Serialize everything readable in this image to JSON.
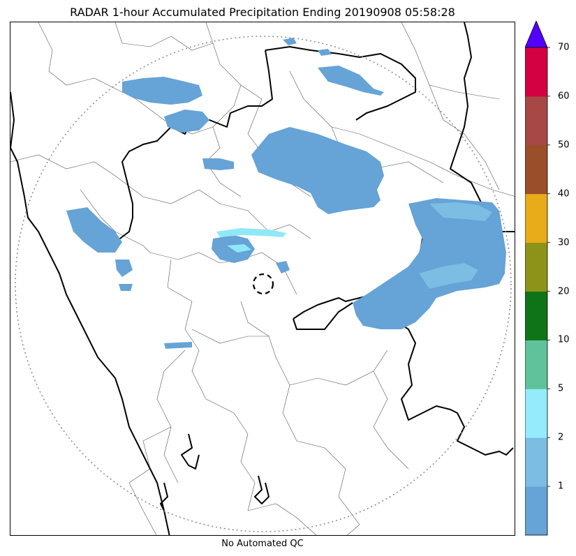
{
  "title": "RADAR 1-hour Accumulated Precipitation Ending 20190908 05:58:28",
  "footer": "No Automated QC",
  "colors": {
    "rain_primary": "#66a3d6",
    "rain_light": "#7bbde3",
    "rain_cyan": "#8fe8f7",
    "border_state": "#000000",
    "border_district": "#555555",
    "range_ring": "#888888"
  },
  "colorbar": {
    "extend_arrow_color": "#5100ff",
    "tick_labels": [
      "1",
      "2",
      "5",
      "10",
      "20",
      "30",
      "40",
      "50",
      "60",
      "70"
    ],
    "segments": [
      {
        "color": "#66a3d6"
      },
      {
        "color": "#7bbde3"
      },
      {
        "color": "#95ebfb"
      },
      {
        "color": "#5fc29a"
      },
      {
        "color": "#0f7318"
      },
      {
        "color": "#8d9318"
      },
      {
        "color": "#e8ab1a"
      },
      {
        "color": "#9a4e2a"
      },
      {
        "color": "#a84846"
      },
      {
        "color": "#d30042"
      }
    ]
  }
}
